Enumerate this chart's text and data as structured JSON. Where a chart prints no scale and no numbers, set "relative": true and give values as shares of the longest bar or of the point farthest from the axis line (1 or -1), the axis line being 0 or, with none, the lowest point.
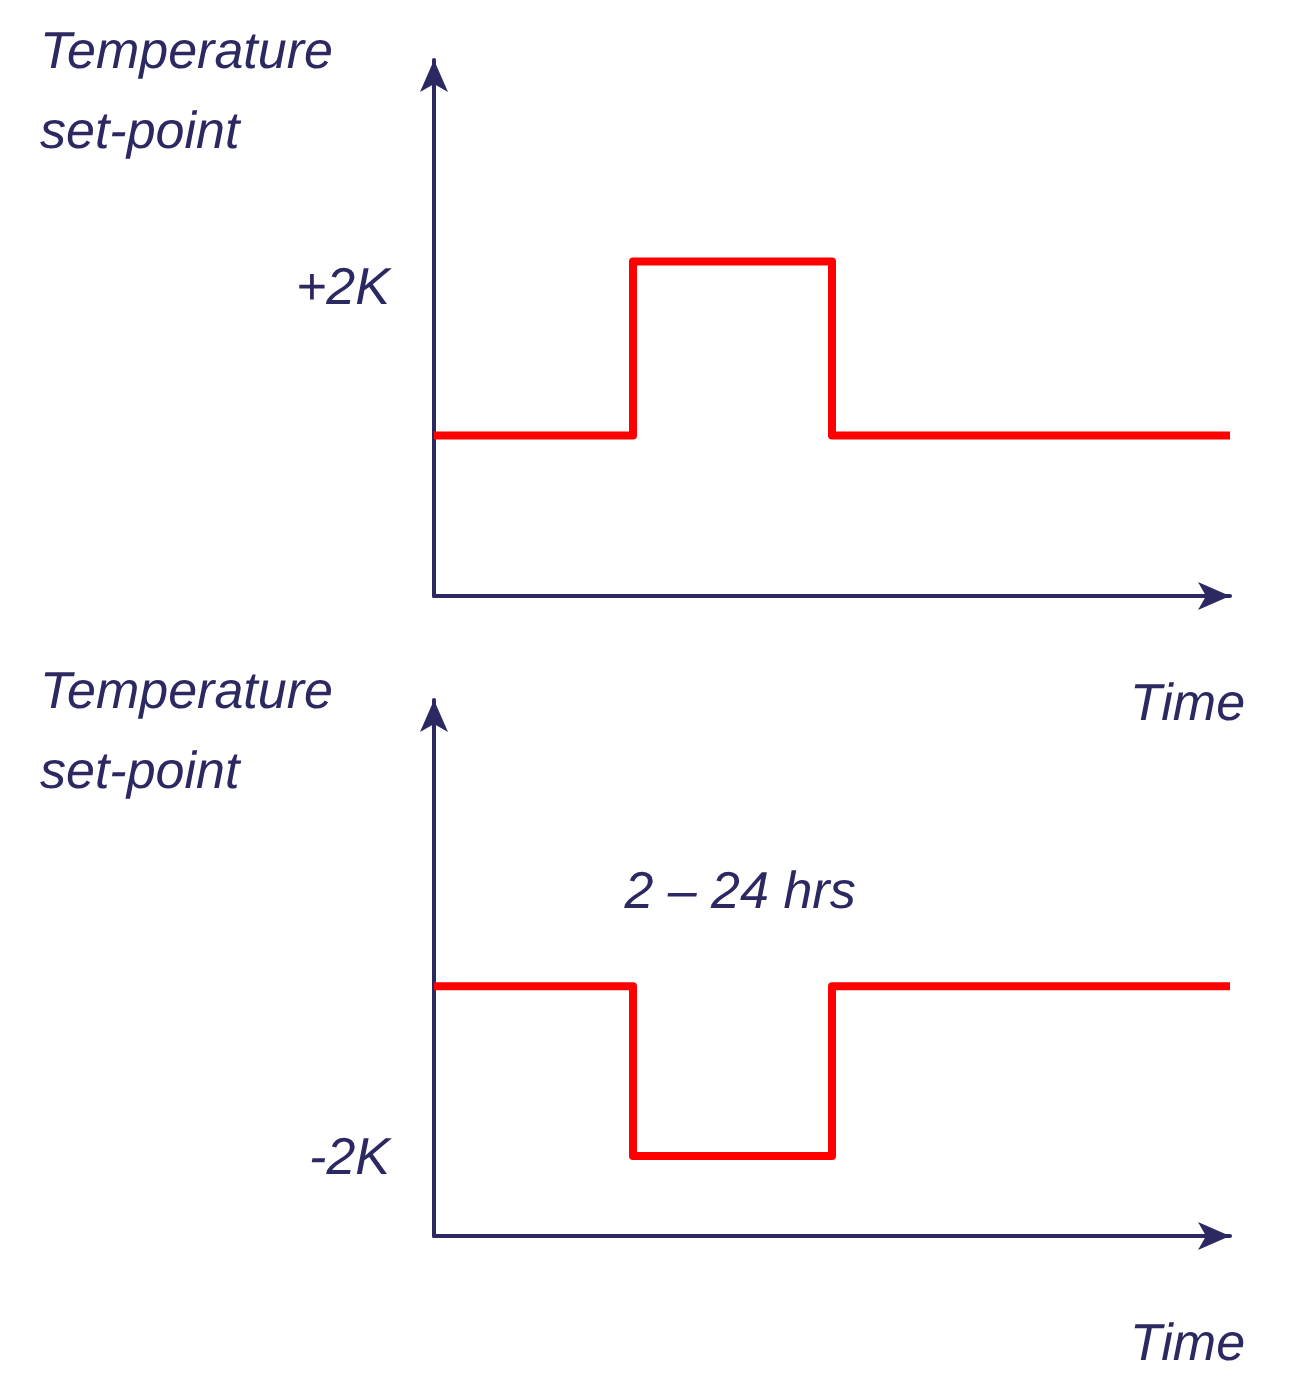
{
  "chart_data": [
    {
      "type": "step",
      "relative": true,
      "ylabel": "Temperature set-point",
      "xlabel": "Time",
      "annotations": [
        "+2K"
      ],
      "categories": [
        null,
        null,
        null,
        null,
        null
      ],
      "grid": false,
      "marker": "none",
      "series": [
        {
          "color": "#ff0000",
          "values": [
            0.48,
            1,
            0.48,
            0.48,
            0.48
          ]
        }
      ]
    },
    {
      "type": "step",
      "relative": true,
      "ylabel": "Temperature set-point",
      "xlabel": "Time",
      "annotations": [
        "-2K",
        "2 – 24 hrs"
      ],
      "categories": [
        null,
        null,
        null,
        null,
        null
      ],
      "grid": false,
      "marker": "none",
      "series": [
        {
          "color": "#ff0000",
          "values": [
            1,
            0.32,
            1,
            1,
            1
          ]
        }
      ]
    }
  ]
}
